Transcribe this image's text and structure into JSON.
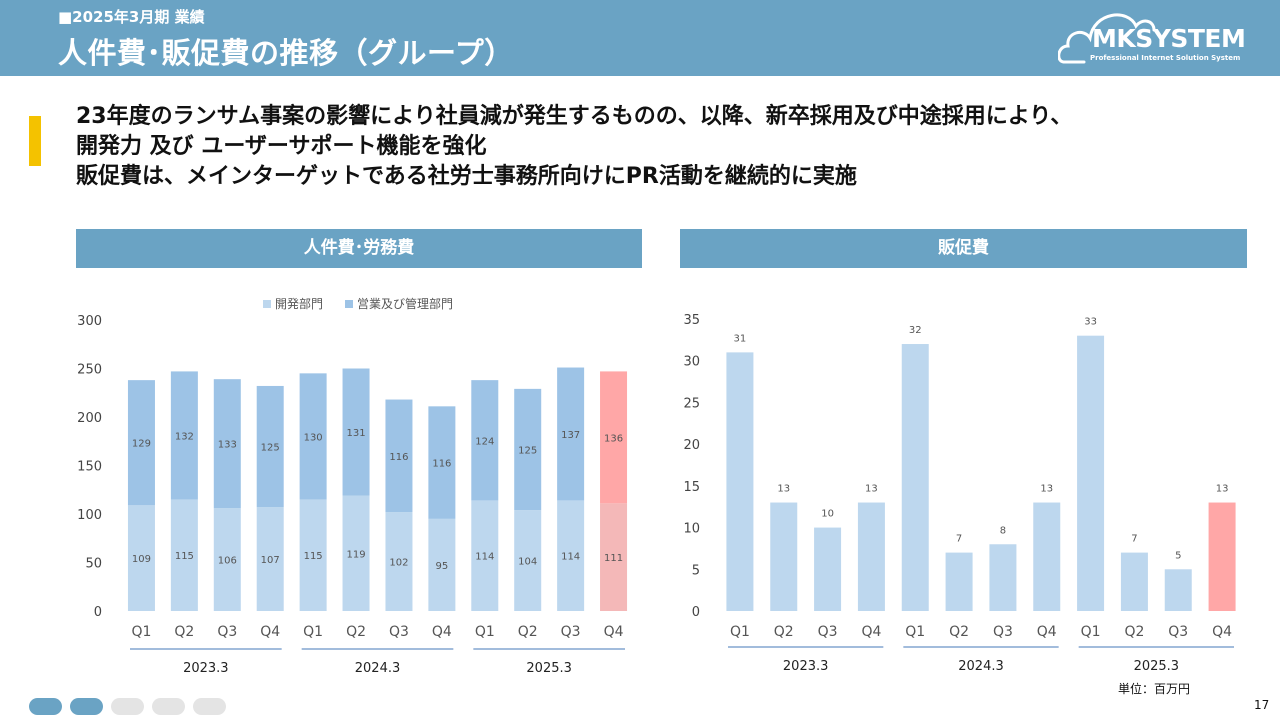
{
  "header": {
    "subtitle": "■2025年3月期 業績",
    "title": "人件費･販促費の推移（グループ）"
  },
  "logo": {
    "word": "MKSYSTEM",
    "tagline": "Professional Internet Solution System"
  },
  "lead_lines": [
    "23年度のランサム事案の影響により社員減が発生するものの、以降、新卒採用及び中途採用により、",
    "開発力 及び ユーザーサポート機能を強化",
    "販促費は、メインターゲットである社労士事務所向けにPR活動を継続的に実施"
  ],
  "panels": {
    "left_title": "人件費･労務費",
    "right_title": "販促費"
  },
  "colors": {
    "header": "#6aa3c4",
    "dev": "#bdd7ee",
    "sales_admin": "#9dc3e6",
    "highlight_dev": "#f4b8b8",
    "highlight_sales": "#ffa7a7",
    "promo": "#bdd7ee",
    "accent": "#f4c200"
  },
  "chart_data": [
    {
      "type": "bar",
      "stacked": true,
      "categories": [
        "Q1",
        "Q2",
        "Q3",
        "Q4",
        "Q1",
        "Q2",
        "Q3",
        "Q4",
        "Q1",
        "Q2",
        "Q3",
        "Q4"
      ],
      "groups": [
        {
          "label": "2023.3",
          "from": 0,
          "to": 3
        },
        {
          "label": "2024.3",
          "from": 4,
          "to": 7
        },
        {
          "label": "2025.3",
          "from": 8,
          "to": 11
        }
      ],
      "series": [
        {
          "name": "開発部門",
          "values": [
            109,
            115,
            106,
            107,
            115,
            119,
            102,
            95,
            114,
            104,
            114,
            111
          ]
        },
        {
          "name": "営業及び管理部門",
          "values": [
            129,
            132,
            133,
            125,
            130,
            131,
            116,
            116,
            124,
            125,
            137,
            136
          ]
        }
      ],
      "highlight_index": 11,
      "ylim": [
        0,
        300
      ],
      "yticks": [
        0,
        50,
        100,
        150,
        200,
        250,
        300
      ],
      "legend": "top"
    },
    {
      "type": "bar",
      "categories": [
        "Q1",
        "Q2",
        "Q3",
        "Q4",
        "Q1",
        "Q2",
        "Q3",
        "Q4",
        "Q1",
        "Q2",
        "Q3",
        "Q4"
      ],
      "groups": [
        {
          "label": "2023.3",
          "from": 0,
          "to": 3
        },
        {
          "label": "2024.3",
          "from": 4,
          "to": 7
        },
        {
          "label": "2025.3",
          "from": 8,
          "to": 11
        }
      ],
      "values": [
        31,
        13,
        10,
        13,
        32,
        7,
        8,
        13,
        33,
        7,
        5,
        13
      ],
      "highlight_index": 11,
      "ylim": [
        0,
        35
      ],
      "yticks": [
        0,
        5,
        10,
        15,
        20,
        25,
        30,
        35
      ]
    }
  ],
  "unit_label": "単位：百万円",
  "page_number": "17",
  "pagination": {
    "total": 5,
    "active": [
      0,
      1
    ]
  }
}
